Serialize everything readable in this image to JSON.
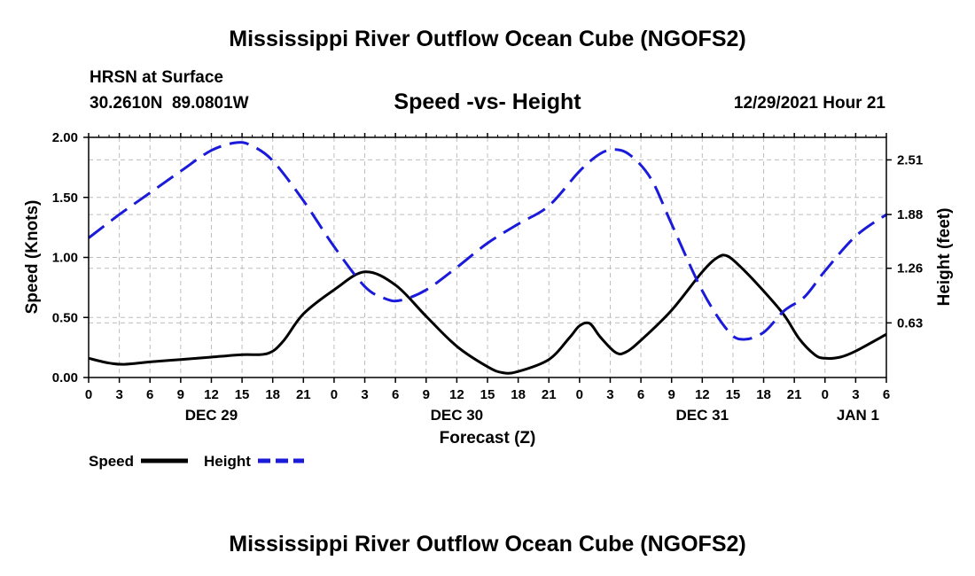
{
  "header": {
    "title": "Mississippi River Outflow Ocean Cube (NGOFS2)",
    "station": "HRSN at Surface",
    "coords": "30.2610N  89.0801W",
    "datetime": "12/29/2021 Hour 21",
    "footer_title": "Mississippi River Outflow Ocean Cube (NGOFS2)"
  },
  "chart_data": {
    "type": "line",
    "title": "Speed -vs- Height",
    "xlabel": "Forecast (Z)",
    "ylabel": "Speed (Knots)",
    "y2label": "Height (feet)",
    "x_range_hours": [
      0,
      78
    ],
    "ylim": [
      0,
      2.0
    ],
    "y2lim": [
      0,
      2.77
    ],
    "y_ticks": [
      "0.00",
      "0.50",
      "1.00",
      "1.50",
      "2.00"
    ],
    "y2_ticks": [
      "0.63",
      "1.26",
      "1.88",
      "2.51"
    ],
    "y2_tick_values": [
      0.63,
      1.26,
      1.88,
      2.51
    ],
    "x_ticks": [
      "0",
      "3",
      "6",
      "9",
      "12",
      "15",
      "18",
      "21",
      "0",
      "3",
      "6",
      "9",
      "12",
      "15",
      "18",
      "21",
      "0",
      "3",
      "6",
      "9",
      "12",
      "15",
      "18",
      "21",
      "0",
      "3",
      "6"
    ],
    "date_labels": [
      {
        "label": "DEC 29",
        "hour": 12
      },
      {
        "label": "DEC 30",
        "hour": 36
      },
      {
        "label": "DEC 31",
        "hour": 60
      },
      {
        "label": "JAN 1",
        "hour": 78
      }
    ],
    "grid": true,
    "legend": [
      "Speed",
      "Height"
    ],
    "series": [
      {
        "name": "Speed",
        "axis": "left",
        "color": "#000000",
        "style": "solid",
        "points": [
          [
            0,
            0.16
          ],
          [
            2,
            0.12
          ],
          [
            3.5,
            0.11
          ],
          [
            6,
            0.13
          ],
          [
            9,
            0.15
          ],
          [
            12,
            0.17
          ],
          [
            15,
            0.19
          ],
          [
            17.5,
            0.2
          ],
          [
            19,
            0.3
          ],
          [
            21,
            0.53
          ],
          [
            24,
            0.73
          ],
          [
            27,
            0.88
          ],
          [
            30,
            0.77
          ],
          [
            33,
            0.51
          ],
          [
            36,
            0.26
          ],
          [
            39,
            0.09
          ],
          [
            40.5,
            0.04
          ],
          [
            42,
            0.05
          ],
          [
            45,
            0.15
          ],
          [
            47,
            0.33
          ],
          [
            48,
            0.43
          ],
          [
            49,
            0.45
          ],
          [
            50,
            0.34
          ],
          [
            51.5,
            0.21
          ],
          [
            52.5,
            0.21
          ],
          [
            54,
            0.31
          ],
          [
            57,
            0.56
          ],
          [
            60,
            0.88
          ],
          [
            61.5,
            1.0
          ],
          [
            62.5,
            1.01
          ],
          [
            64,
            0.9
          ],
          [
            66,
            0.72
          ],
          [
            68,
            0.52
          ],
          [
            69.5,
            0.32
          ],
          [
            71,
            0.19
          ],
          [
            72,
            0.16
          ],
          [
            73.5,
            0.17
          ],
          [
            75,
            0.22
          ],
          [
            78,
            0.36
          ]
        ]
      },
      {
        "name": "Height",
        "axis": "right",
        "color": "#1a1adb",
        "style": "dashed",
        "points": [
          [
            0,
            1.61
          ],
          [
            3,
            1.88
          ],
          [
            6,
            2.13
          ],
          [
            9,
            2.38
          ],
          [
            12,
            2.62
          ],
          [
            14.5,
            2.71
          ],
          [
            16,
            2.67
          ],
          [
            18,
            2.5
          ],
          [
            21,
            2.04
          ],
          [
            24,
            1.51
          ],
          [
            27,
            1.05
          ],
          [
            29,
            0.91
          ],
          [
            30.5,
            0.89
          ],
          [
            33,
            1.01
          ],
          [
            36,
            1.27
          ],
          [
            39,
            1.55
          ],
          [
            42,
            1.77
          ],
          [
            45,
            1.98
          ],
          [
            48,
            2.38
          ],
          [
            50,
            2.58
          ],
          [
            51.5,
            2.63
          ],
          [
            53,
            2.56
          ],
          [
            55,
            2.29
          ],
          [
            57,
            1.77
          ],
          [
            60,
            1.0
          ],
          [
            62.5,
            0.54
          ],
          [
            64,
            0.44
          ],
          [
            66,
            0.52
          ],
          [
            68,
            0.77
          ],
          [
            70,
            0.93
          ],
          [
            72,
            1.23
          ],
          [
            75,
            1.63
          ],
          [
            78,
            1.88
          ]
        ]
      }
    ]
  }
}
